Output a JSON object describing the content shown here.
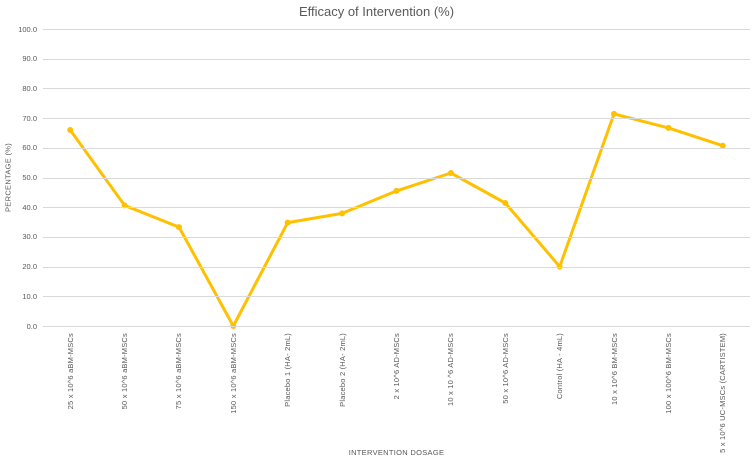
{
  "title": "Efficacy of Intervention (%)",
  "chart_data": {
    "type": "line",
    "title": "Efficacy of Intervention (%)",
    "xlabel": "INTERVENTION DOSAGE",
    "ylabel": "PERCENTAGE (%)",
    "ylim": [
      0,
      100
    ],
    "ytick_step": 10,
    "ytick_decimals": 1,
    "grid": true,
    "legend": "none",
    "line_color": "#FFC000",
    "grid_color": "#D9D9D9",
    "text_color": "#595959",
    "categories": [
      "25 x 10^6  aBM-MSCs",
      "50 x 10^6  aBM-MSCs",
      "75 x 10^6  aBM-MSCs",
      "150 x 10^6  aBM-MSCs",
      "Placebo 1 (HA- 2mL)",
      "Placebo 2 (HA- 2mL)",
      "2 x 10^6 AD-MSCs",
      "10 x 10 ^6 AD-MSCs",
      "50 x 10^6 AD-MSCs",
      "Control (HA - 4mL)",
      "10 x 10^6 BM-MSCs",
      "100 x 100^6 BM-MSCs",
      "5 x 10^6 UC-MSCs (CARTISTEM)"
    ],
    "values": [
      66.0,
      40.6,
      33.3,
      0.0,
      34.8,
      37.9,
      45.5,
      51.5,
      41.4,
      20.0,
      71.4,
      66.7,
      60.7
    ]
  }
}
